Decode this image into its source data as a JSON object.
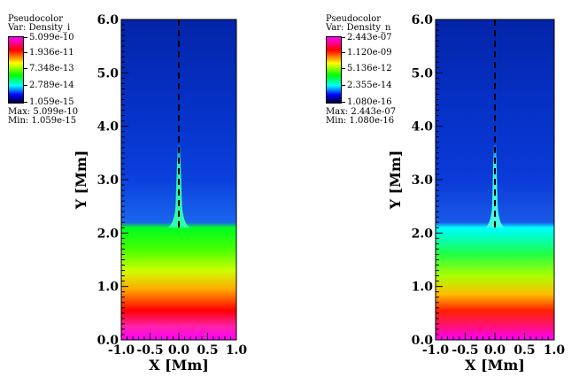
{
  "chart_data": [
    {
      "type": "heatmap",
      "legend": {
        "plot_label": "Pseudocolor",
        "var_label": "Var: Density_i",
        "ticks": [
          "5.099e-10",
          "1.936e-11",
          "7.348e-13",
          "2.789e-14",
          "1.059e-15"
        ],
        "max_label": "Max:",
        "max_value": "5.099e-10",
        "min_label": "Min:",
        "min_value": "1.059e-15"
      },
      "xlabel": "X [Mm]",
      "ylabel": "Y [Mm]",
      "xlim": [
        -1.0,
        1.0
      ],
      "ylim": [
        0.0,
        6.0
      ],
      "xticks": [
        "-1.0",
        "-0.5",
        "0.0",
        "0.5",
        "1.0"
      ],
      "yticks": [
        "0.0",
        "1.0",
        "2.0",
        "3.0",
        "4.0",
        "5.0",
        "6.0"
      ],
      "colorscale": [
        "#ff00ff",
        "#ff0000",
        "#ffff00",
        "#00ff00",
        "#00ffff",
        "#0000ff",
        "#000033"
      ],
      "stratification": [
        {
          "y": 0.0,
          "color": "#ff00ff"
        },
        {
          "y": 0.25,
          "color": "#ff22aa"
        },
        {
          "y": 0.55,
          "color": "#ff0000"
        },
        {
          "y": 0.95,
          "color": "#ffaa00"
        },
        {
          "y": 1.3,
          "color": "#ccff00"
        },
        {
          "y": 1.7,
          "color": "#44ff00"
        },
        {
          "y": 2.1,
          "color": "#00ff22"
        },
        {
          "y": 2.2,
          "color": "#1a66ee"
        },
        {
          "y": 3.0,
          "color": "#0a40dd"
        },
        {
          "y": 4.5,
          "color": "#0530c4"
        },
        {
          "y": 6.0,
          "color": "#0424a8"
        }
      ],
      "spicule": {
        "x": 0.0,
        "base_y": 2.1,
        "top_y": 3.65,
        "half_width_base": 0.12,
        "half_width_top": 0.02,
        "color": "#33ffaa"
      },
      "guide_line": {
        "x": 0.0
      }
    },
    {
      "type": "heatmap",
      "legend": {
        "plot_label": "Pseudocolor",
        "var_label": "Var: Density_n",
        "ticks": [
          "2.443e-07",
          "1.120e-09",
          "5.136e-12",
          "2.355e-14",
          "1.080e-16"
        ],
        "max_label": "Max:",
        "max_value": "2.443e-07",
        "min_label": "Min:",
        "min_value": "1.080e-16"
      },
      "xlabel": "X [Mm]",
      "ylabel": "Y [Mm]",
      "xlim": [
        -1.0,
        1.0
      ],
      "ylim": [
        0.0,
        6.0
      ],
      "xticks": [
        "-1.0",
        "-0.5",
        "0.0",
        "0.5",
        "1.0"
      ],
      "yticks": [
        "0.0",
        "1.0",
        "2.0",
        "3.0",
        "4.0",
        "5.0",
        "6.0"
      ],
      "colorscale": [
        "#ff00ff",
        "#ff0000",
        "#ffff00",
        "#00ff00",
        "#00ffff",
        "#0000ff",
        "#000033"
      ],
      "stratification": [
        {
          "y": 0.0,
          "color": "#ff00ff"
        },
        {
          "y": 0.25,
          "color": "#ff1177"
        },
        {
          "y": 0.55,
          "color": "#ff2200"
        },
        {
          "y": 0.85,
          "color": "#ffbb00"
        },
        {
          "y": 1.2,
          "color": "#aaff00"
        },
        {
          "y": 1.6,
          "color": "#22ff44"
        },
        {
          "y": 1.95,
          "color": "#00ffcc"
        },
        {
          "y": 2.1,
          "color": "#00ffff"
        },
        {
          "y": 2.2,
          "color": "#1a5ae8"
        },
        {
          "y": 3.0,
          "color": "#0a3ad8"
        },
        {
          "y": 4.5,
          "color": "#0530c4"
        },
        {
          "y": 6.0,
          "color": "#0424a8"
        }
      ],
      "spicule": {
        "x": 0.0,
        "base_y": 2.1,
        "top_y": 3.65,
        "half_width_base": 0.1,
        "half_width_top": 0.02,
        "color": "#44ffdd"
      },
      "guide_line": {
        "x": 0.0
      }
    }
  ]
}
